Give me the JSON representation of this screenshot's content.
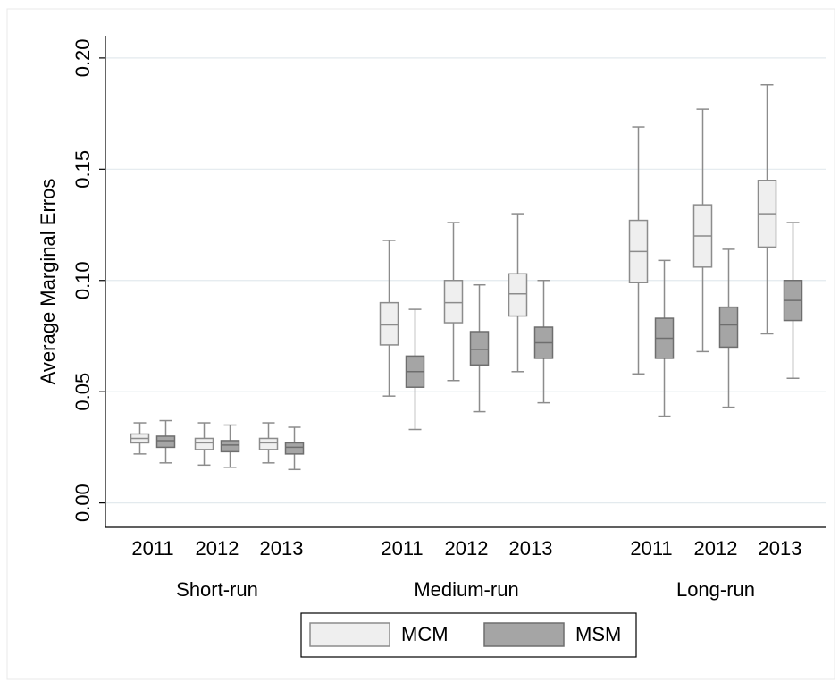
{
  "chart_data": {
    "type": "box",
    "y_label": "Average Marginal Erros",
    "groups": [
      "Short-run",
      "Medium-run",
      "Long-run"
    ],
    "categories": [
      "2011",
      "2012",
      "2013",
      "2011",
      "2012",
      "2013",
      "2011",
      "2012",
      "2013"
    ],
    "ylim": [
      -0.011,
      0.21
    ],
    "yticks": [
      {
        "value": 0,
        "label": "0.00"
      },
      {
        "value": 0.05,
        "label": "0.05"
      },
      {
        "value": 0.1,
        "label": "0.10"
      },
      {
        "value": 0.15,
        "label": "0.15"
      },
      {
        "value": 0.2,
        "label": "0.20"
      }
    ],
    "grid": true,
    "legend": "bottom",
    "series": [
      {
        "name": "MCM",
        "color": "#efefef",
        "boxes": [
          {
            "low": 0.022,
            "q1": 0.027,
            "median": 0.029,
            "q3": 0.031,
            "high": 0.036
          },
          {
            "low": 0.017,
            "q1": 0.024,
            "median": 0.027,
            "q3": 0.029,
            "high": 0.036
          },
          {
            "low": 0.018,
            "q1": 0.024,
            "median": 0.027,
            "q3": 0.029,
            "high": 0.036
          },
          {
            "low": 0.048,
            "q1": 0.071,
            "median": 0.08,
            "q3": 0.09,
            "high": 0.118
          },
          {
            "low": 0.055,
            "q1": 0.081,
            "median": 0.09,
            "q3": 0.1,
            "high": 0.126
          },
          {
            "low": 0.059,
            "q1": 0.084,
            "median": 0.094,
            "q3": 0.103,
            "high": 0.13
          },
          {
            "low": 0.058,
            "q1": 0.099,
            "median": 0.113,
            "q3": 0.127,
            "high": 0.169
          },
          {
            "low": 0.068,
            "q1": 0.106,
            "median": 0.12,
            "q3": 0.134,
            "high": 0.177
          },
          {
            "low": 0.076,
            "q1": 0.115,
            "median": 0.13,
            "q3": 0.145,
            "high": 0.188
          }
        ]
      },
      {
        "name": "MSM",
        "color": "#a5a5a5",
        "boxes": [
          {
            "low": 0.018,
            "q1": 0.025,
            "median": 0.028,
            "q3": 0.03,
            "high": 0.037
          },
          {
            "low": 0.016,
            "q1": 0.023,
            "median": 0.026,
            "q3": 0.028,
            "high": 0.035
          },
          {
            "low": 0.015,
            "q1": 0.022,
            "median": 0.025,
            "q3": 0.027,
            "high": 0.034
          },
          {
            "low": 0.033,
            "q1": 0.052,
            "median": 0.059,
            "q3": 0.066,
            "high": 0.087
          },
          {
            "low": 0.041,
            "q1": 0.062,
            "median": 0.069,
            "q3": 0.077,
            "high": 0.098
          },
          {
            "low": 0.045,
            "q1": 0.065,
            "median": 0.072,
            "q3": 0.079,
            "high": 0.1
          },
          {
            "low": 0.039,
            "q1": 0.065,
            "median": 0.074,
            "q3": 0.083,
            "high": 0.109
          },
          {
            "low": 0.043,
            "q1": 0.07,
            "median": 0.08,
            "q3": 0.088,
            "high": 0.114
          },
          {
            "low": 0.056,
            "q1": 0.082,
            "median": 0.091,
            "q3": 0.1,
            "high": 0.126
          }
        ]
      }
    ]
  }
}
